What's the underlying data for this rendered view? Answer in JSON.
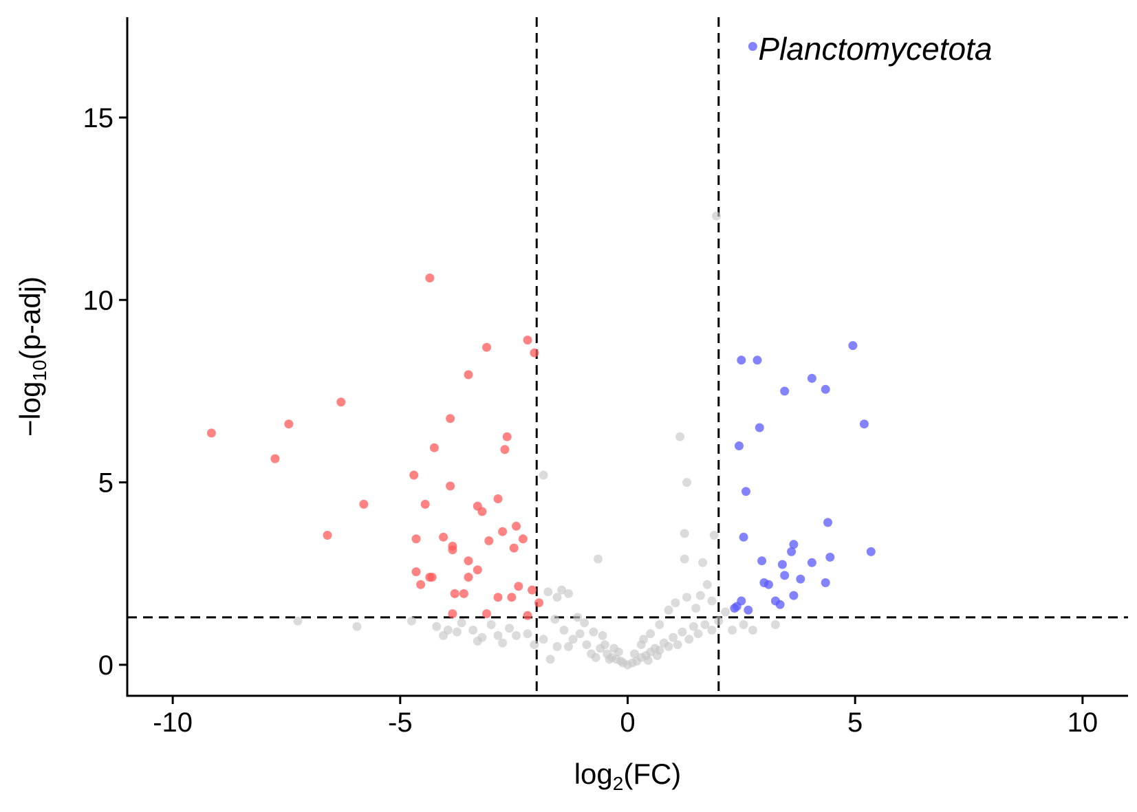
{
  "chart_data": {
    "type": "scatter",
    "title": "",
    "xlabel": "log2(FC)",
    "ylabel": "−log10(p-adj)",
    "xlim": [
      -11,
      11
    ],
    "ylim": [
      -0.85,
      17.75
    ],
    "x_ticks": [
      -10,
      -5,
      0,
      5,
      10
    ],
    "x_tick_labels": [
      "-10",
      "-5",
      "0",
      "5",
      "10"
    ],
    "y_ticks": [
      0,
      5,
      10,
      15
    ],
    "y_tick_labels": [
      "0",
      "5",
      "10",
      "15"
    ],
    "grid": false,
    "legend": "none",
    "reference_lines": {
      "vertical": [
        -2,
        2
      ],
      "horizontal": [
        1.3
      ]
    },
    "annotations": [
      {
        "text": "Planctomycetota",
        "x": 2.75,
        "y": 16.9
      }
    ],
    "colors": {
      "down": "#ff5a5a",
      "up": "#5a5aff",
      "ns": "#c8c8c8"
    },
    "series": [
      {
        "group": "down",
        "points": [
          [
            -9.15,
            6.35
          ],
          [
            -7.75,
            5.65
          ],
          [
            -7.45,
            6.6
          ],
          [
            -6.6,
            3.55
          ],
          [
            -6.3,
            7.2
          ],
          [
            -5.8,
            4.4
          ],
          [
            -4.7,
            5.2
          ],
          [
            -4.65,
            3.45
          ],
          [
            -4.65,
            2.55
          ],
          [
            -4.55,
            2.2
          ],
          [
            -4.45,
            4.4
          ],
          [
            -4.35,
            10.6
          ],
          [
            -4.35,
            2.4
          ],
          [
            -4.3,
            2.4
          ],
          [
            -4.25,
            5.95
          ],
          [
            -4.05,
            3.5
          ],
          [
            -3.9,
            6.75
          ],
          [
            -3.9,
            4.9
          ],
          [
            -3.85,
            3.25
          ],
          [
            -3.85,
            3.15
          ],
          [
            -3.8,
            1.95
          ],
          [
            -3.85,
            1.4
          ],
          [
            -3.6,
            1.95
          ],
          [
            -3.5,
            7.95
          ],
          [
            -3.5,
            2.4
          ],
          [
            -3.5,
            2.85
          ],
          [
            -3.3,
            4.35
          ],
          [
            -3.3,
            2.6
          ],
          [
            -3.2,
            4.2
          ],
          [
            -3.1,
            8.7
          ],
          [
            -3.05,
            3.4
          ],
          [
            -3.1,
            1.4
          ],
          [
            -2.85,
            4.55
          ],
          [
            -2.85,
            1.85
          ],
          [
            -2.75,
            3.65
          ],
          [
            -2.7,
            5.9
          ],
          [
            -2.65,
            6.25
          ],
          [
            -2.55,
            1.85
          ],
          [
            -2.5,
            3.2
          ],
          [
            -2.45,
            3.8
          ],
          [
            -2.4,
            2.15
          ],
          [
            -2.3,
            3.45
          ],
          [
            -2.2,
            1.35
          ],
          [
            -2.2,
            8.9
          ],
          [
            -2.05,
            8.55
          ],
          [
            -2.1,
            2.05
          ],
          [
            -1.95,
            1.7
          ]
        ]
      },
      {
        "group": "up",
        "points": [
          [
            2.75,
            16.95
          ],
          [
            2.5,
            8.35
          ],
          [
            2.85,
            8.35
          ],
          [
            2.45,
            6.0
          ],
          [
            2.9,
            6.5
          ],
          [
            2.6,
            4.75
          ],
          [
            2.55,
            3.5
          ],
          [
            2.95,
            2.85
          ],
          [
            3.0,
            2.25
          ],
          [
            3.1,
            2.2
          ],
          [
            3.25,
            1.75
          ],
          [
            3.35,
            1.65
          ],
          [
            3.4,
            2.75
          ],
          [
            3.45,
            2.45
          ],
          [
            3.45,
            7.5
          ],
          [
            3.6,
            3.1
          ],
          [
            3.65,
            3.3
          ],
          [
            3.65,
            1.9
          ],
          [
            3.8,
            2.35
          ],
          [
            4.05,
            2.8
          ],
          [
            4.05,
            7.85
          ],
          [
            4.35,
            7.55
          ],
          [
            4.35,
            2.25
          ],
          [
            4.4,
            3.9
          ],
          [
            4.45,
            2.95
          ],
          [
            4.95,
            8.75
          ],
          [
            5.2,
            6.6
          ],
          [
            5.35,
            3.1
          ],
          [
            2.35,
            1.55
          ],
          [
            2.4,
            1.6
          ],
          [
            2.5,
            1.75
          ],
          [
            2.65,
            1.5
          ]
        ]
      },
      {
        "group": "ns",
        "points": [
          [
            1.95,
            12.3
          ],
          [
            1.15,
            6.25
          ],
          [
            1.3,
            5.0
          ],
          [
            -1.85,
            5.2
          ],
          [
            -0.65,
            2.9
          ],
          [
            1.25,
            3.6
          ],
          [
            1.25,
            2.9
          ],
          [
            1.65,
            2.8
          ],
          [
            1.9,
            3.55
          ],
          [
            -7.25,
            1.2
          ],
          [
            -5.95,
            1.05
          ],
          [
            -4.75,
            1.2
          ],
          [
            -4.2,
            1.05
          ],
          [
            -4.05,
            0.8
          ],
          [
            -3.95,
            0.95
          ],
          [
            -3.75,
            0.9
          ],
          [
            -3.65,
            1.15
          ],
          [
            -3.4,
            0.95
          ],
          [
            -3.3,
            0.65
          ],
          [
            -3.2,
            0.75
          ],
          [
            -3.0,
            1.1
          ],
          [
            -2.85,
            0.8
          ],
          [
            -2.75,
            0.6
          ],
          [
            -2.6,
            1.0
          ],
          [
            -2.45,
            0.8
          ],
          [
            -2.2,
            0.85
          ],
          [
            -2.05,
            0.55
          ],
          [
            -1.75,
            2.0
          ],
          [
            -1.55,
            1.85
          ],
          [
            -1.45,
            2.05
          ],
          [
            -1.3,
            1.95
          ],
          [
            -1.1,
            1.3
          ],
          [
            -0.95,
            1.15
          ],
          [
            -1.6,
            1.25
          ],
          [
            -1.4,
            0.95
          ],
          [
            -1.2,
            0.7
          ],
          [
            -1.05,
            0.85
          ],
          [
            -0.9,
            0.55
          ],
          [
            -0.75,
            0.9
          ],
          [
            -0.6,
            0.45
          ],
          [
            -0.5,
            0.55
          ],
          [
            -0.45,
            0.3
          ],
          [
            -0.35,
            0.2
          ],
          [
            -0.25,
            0.15
          ],
          [
            -0.15,
            0.1
          ],
          [
            -0.1,
            0.05
          ],
          [
            0.0,
            0.0
          ],
          [
            0.1,
            0.05
          ],
          [
            0.2,
            0.1
          ],
          [
            0.3,
            0.2
          ],
          [
            0.4,
            0.25
          ],
          [
            0.5,
            0.35
          ],
          [
            0.6,
            0.45
          ],
          [
            0.7,
            0.4
          ],
          [
            0.8,
            0.6
          ],
          [
            0.9,
            0.5
          ],
          [
            1.0,
            0.75
          ],
          [
            1.1,
            0.55
          ],
          [
            1.2,
            0.9
          ],
          [
            1.35,
            0.7
          ],
          [
            1.45,
            1.05
          ],
          [
            1.55,
            0.85
          ],
          [
            1.7,
            1.1
          ],
          [
            1.85,
            0.95
          ],
          [
            2.0,
            1.2
          ],
          [
            0.7,
            1.1
          ],
          [
            0.9,
            1.5
          ],
          [
            1.05,
            1.7
          ],
          [
            1.3,
            1.85
          ],
          [
            1.5,
            1.55
          ],
          [
            1.6,
            1.9
          ],
          [
            1.75,
            2.2
          ],
          [
            1.85,
            1.75
          ],
          [
            0.5,
            0.85
          ],
          [
            0.3,
            0.55
          ],
          [
            -0.3,
            0.45
          ],
          [
            -0.55,
            0.8
          ],
          [
            -0.8,
            0.3
          ],
          [
            0.65,
            0.25
          ],
          [
            -0.7,
            0.2
          ],
          [
            -1.55,
            0.5
          ],
          [
            -1.85,
            0.7
          ],
          [
            2.15,
            1.45
          ],
          [
            2.3,
            0.95
          ],
          [
            2.55,
            1.1
          ],
          [
            2.75,
            0.95
          ],
          [
            3.25,
            1.1
          ],
          [
            -0.2,
            0.35
          ],
          [
            0.15,
            0.3
          ],
          [
            0.35,
            0.7
          ],
          [
            -0.4,
            0.15
          ],
          [
            0.45,
            0.12
          ],
          [
            -1.7,
            0.15
          ],
          [
            -1.3,
            0.5
          ]
        ]
      }
    ]
  }
}
